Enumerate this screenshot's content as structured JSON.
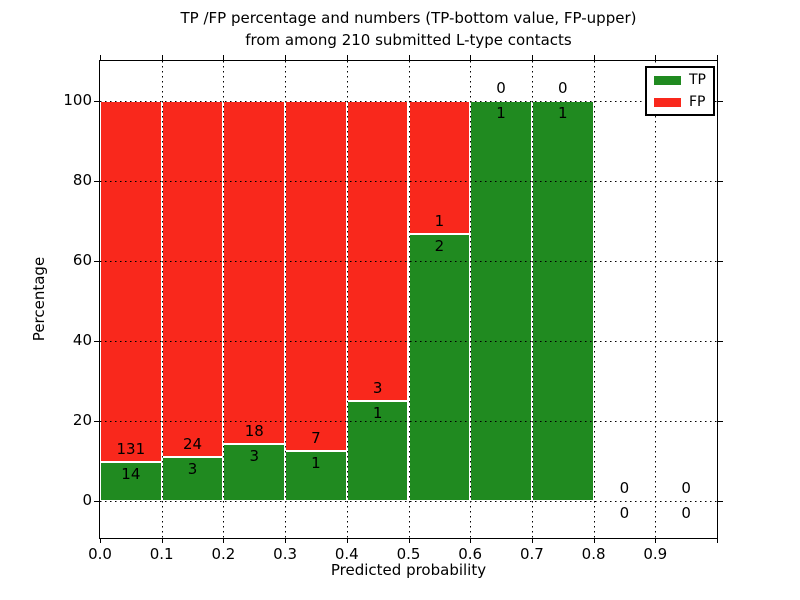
{
  "title": {
    "line1": "TP /FP percentage and numbers (TP-bottom value, FP-upper)",
    "line2": "from among 210 submitted L-type contacts"
  },
  "axes": {
    "ylabel": "Percentage",
    "xlabel": "Predicted probability",
    "yticks": [
      "0",
      "20",
      "40",
      "60",
      "80",
      "100"
    ],
    "xticks": [
      "0.0",
      "0.1",
      "0.2",
      "0.3",
      "0.4",
      "0.5",
      "0.6",
      "0.7",
      "0.8",
      "0.9"
    ]
  },
  "legend": {
    "items": [
      {
        "label": "TP",
        "color": "#208a20"
      },
      {
        "label": "FP",
        "color": "#f9281c"
      }
    ]
  },
  "colors": {
    "tp_green": "#208a20",
    "fp_red": "#f9281c",
    "bar_edge": "#ffffff",
    "grid": "#000000"
  },
  "chart_data": {
    "type": "bar",
    "stacked": true,
    "normalized_to": "100 percent per bin",
    "title": "TP /FP percentage and numbers (TP-bottom value, FP-upper) from among 210 submitted L-type contacts",
    "xlabel": "Predicted probability",
    "ylabel": "Percentage",
    "total_contacts": 210,
    "bin_starts": [
      0.0,
      0.1,
      0.2,
      0.3,
      0.4,
      0.5,
      0.6,
      0.7,
      0.8,
      0.9
    ],
    "bin_width": 0.1,
    "xlim": [
      0.0,
      1.0
    ],
    "ytick_values": [
      0,
      20,
      40,
      60,
      80,
      100
    ],
    "grid": "dotted, drawn above bars",
    "legend_position": "upper right",
    "series": [
      {
        "name": "TP",
        "color": "#208a20",
        "position": "bottom",
        "counts": [
          14,
          3,
          3,
          1,
          1,
          2,
          1,
          1,
          0,
          0
        ],
        "percent": [
          9.66,
          11.11,
          14.29,
          12.5,
          25.0,
          66.67,
          100.0,
          100.0,
          0,
          0
        ]
      },
      {
        "name": "FP",
        "color": "#f9281c",
        "position": "top",
        "counts": [
          131,
          24,
          18,
          7,
          3,
          1,
          0,
          0,
          0,
          0
        ],
        "percent": [
          90.34,
          88.89,
          85.71,
          87.5,
          75.0,
          33.33,
          0.0,
          0.0,
          0,
          0
        ]
      }
    ],
    "annotations": "FP count printed just above the TP/FP boundary of each bin, TP count just below it; bins with no contacts show 0 / 0 at the zero line"
  }
}
